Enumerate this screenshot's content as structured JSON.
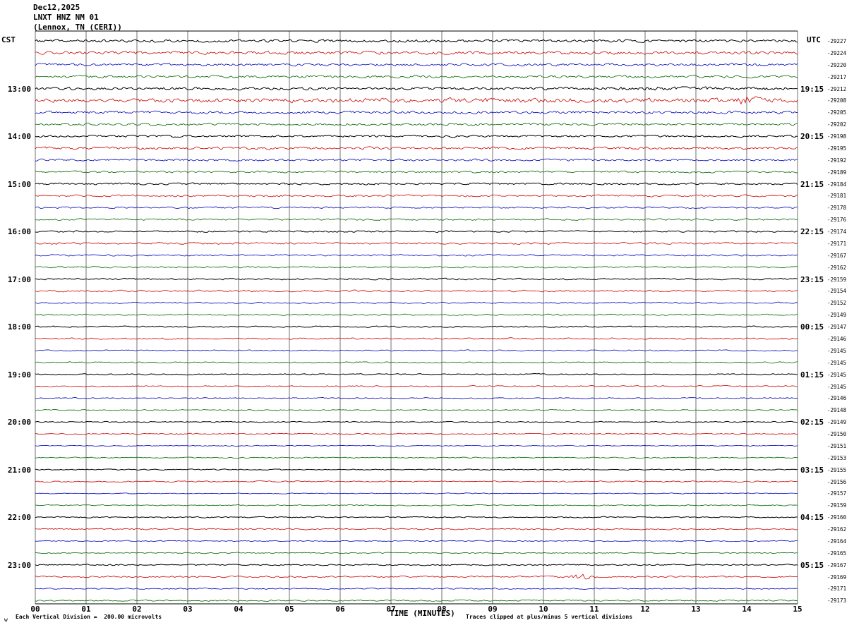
{
  "header": {
    "date": "Dec12,2025",
    "station": "LNXT HNZ NM 01",
    "location": "(Lennox, TN (CERI))"
  },
  "axes": {
    "left_corner_label": "CST",
    "right_corner_label": "UTC",
    "corner_mark": "w"
  },
  "chart_data": {
    "type": "line",
    "title": "LNXT HNZ NM 01 (Lennox, TN (CERI)) Dec12,2025 helicorder seismogram",
    "xlabel": "TIME (MINUTES)",
    "x_range_minutes": [
      0,
      15
    ],
    "x_ticks": [
      "00",
      "01",
      "02",
      "03",
      "04",
      "05",
      "06",
      "07",
      "08",
      "09",
      "10",
      "11",
      "12",
      "13",
      "14",
      "15"
    ],
    "rows": 48,
    "minutes_per_row": 15,
    "trace_color_cycle": [
      "#000000",
      "#cc0000",
      "#0000bb",
      "#006600"
    ],
    "hour_label_rows": [
      4,
      8,
      12,
      16,
      20,
      24,
      28,
      32,
      36,
      40,
      44
    ],
    "left_time_labels_cst": [
      "13:00",
      "14:00",
      "15:00",
      "16:00",
      "17:00",
      "18:00",
      "19:00",
      "20:00",
      "21:00",
      "22:00",
      "23:00"
    ],
    "right_time_labels_utc": [
      "19:15",
      "20:15",
      "21:15",
      "22:15",
      "23:15",
      "00:15",
      "01:15",
      "02:15",
      "03:15",
      "04:15",
      "05:15"
    ],
    "right_tick_values": [
      -29227,
      -29224,
      -29220,
      -29217,
      -29212,
      -29208,
      -29205,
      -29202,
      -29198,
      -29195,
      -29192,
      -29189,
      -29184,
      -29181,
      -29178,
      -29176,
      -29174,
      -29171,
      -29167,
      -29162,
      -29159,
      -29154,
      -29152,
      -29149,
      -29147,
      -29146,
      -29145,
      -29145,
      -29145,
      -29145,
      -29146,
      -29148,
      -29149,
      -29150,
      -29151,
      -29153,
      -29155,
      -29156,
      -29157,
      -29159,
      -29160,
      -29162,
      -29164,
      -29165,
      -29167,
      -29169,
      -29171,
      -29173
    ],
    "row_noise_amplitudes": [
      1.6,
      1.8,
      1.5,
      1.4,
      1.5,
      2.0,
      1.6,
      1.3,
      1.2,
      1.5,
      1.2,
      1.1,
      1.1,
      1.2,
      1.0,
      1.0,
      1.0,
      1.1,
      0.9,
      0.9,
      0.9,
      1.0,
      0.8,
      0.8,
      0.8,
      0.9,
      0.7,
      0.7,
      0.7,
      0.7,
      0.6,
      0.6,
      0.6,
      0.6,
      0.5,
      0.6,
      0.6,
      0.7,
      0.5,
      0.6,
      0.7,
      0.8,
      0.6,
      0.7,
      0.8,
      0.9,
      0.7,
      0.8
    ],
    "events": [
      {
        "row": 5,
        "minute": 14.05,
        "amplitude": 5.5,
        "width_minutes": 0.12
      },
      {
        "row": 5,
        "minute": 9.0,
        "amplitude": 0.8,
        "width_minutes": 4.0
      },
      {
        "row": 4,
        "minute": 12.5,
        "amplitude": 0.6,
        "width_minutes": 2.0
      },
      {
        "row": 45,
        "minute": 10.75,
        "amplitude": 2.5,
        "width_minutes": 0.15
      }
    ],
    "scale_note": "Each Vertical Division =  200.00 microvolts",
    "clip_note": "Traces clipped at plus/minus 5 vertical divisions",
    "grid": true,
    "legend": "none"
  }
}
